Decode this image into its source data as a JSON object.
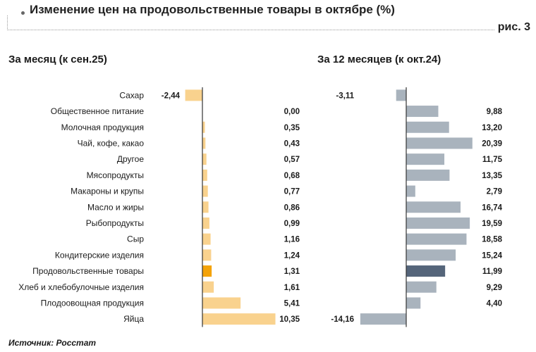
{
  "title": "Изменение цен на продовольственные товары в октябре (%)",
  "figure_label": "рис. 3",
  "source": "Источник: Росстат",
  "colors": {
    "monthly_bar": "#f9d28e",
    "monthly_highlight": "#f4a30a",
    "annual_bar": "#a9b3bd",
    "annual_highlight": "#55657a",
    "axis": "#333333"
  },
  "chart_data": [
    {
      "type": "bar",
      "orientation": "horizontal",
      "title": "За месяц (к сен.25)",
      "categories": [
        "Сахар",
        "Общественное питание",
        "Молочная продукция",
        "Чай, кофе, какао",
        "Другое",
        "Мясопродукты",
        "Макароны и крупы",
        "Масло и жиры",
        "Рыбопродукты",
        "Сыр",
        "Кондитерские изделия",
        "Продовольственные товары",
        "Хлеб и хлебобулочные изделия",
        "Плодоовощная продукция",
        "Яйца"
      ],
      "values": [
        -2.44,
        0.0,
        0.35,
        0.43,
        0.57,
        0.68,
        0.77,
        0.86,
        0.99,
        1.16,
        1.24,
        1.31,
        1.61,
        5.41,
        10.35
      ],
      "labels": [
        "-2,44",
        "0,00",
        "0,35",
        "0,43",
        "0,57",
        "0,68",
        "0,77",
        "0,86",
        "0,99",
        "1,16",
        "1,24",
        "1,31",
        "1,61",
        "5,41",
        "10,35"
      ],
      "highlight": "Продовольственные товары"
    },
    {
      "type": "bar",
      "orientation": "horizontal",
      "title": "За 12 месяцев (к окт.24)",
      "categories": [
        "Сахар",
        "Общественное питание",
        "Молочная продукция",
        "Чай, кофе, какао",
        "Другое",
        "Мясопродукты",
        "Макароны и крупы",
        "Масло и жиры",
        "Рыбопродукты",
        "Сыр",
        "Кондитерские изделия",
        "Продовольственные товары",
        "Хлеб и хлебобулочные изделия",
        "Плодоовощная продукция",
        "Яйца"
      ],
      "values": [
        -3.11,
        9.88,
        13.2,
        20.39,
        11.75,
        13.35,
        2.79,
        16.74,
        19.59,
        18.58,
        15.24,
        11.99,
        9.29,
        4.4,
        -14.16
      ],
      "labels": [
        "-3,11",
        "9,88",
        "13,20",
        "20,39",
        "11,75",
        "13,35",
        "2,79",
        "16,74",
        "19,59",
        "18,58",
        "15,24",
        "11,99",
        "9,29",
        "4,40",
        "-14,16"
      ],
      "highlight": "Продовольственные товары"
    }
  ]
}
